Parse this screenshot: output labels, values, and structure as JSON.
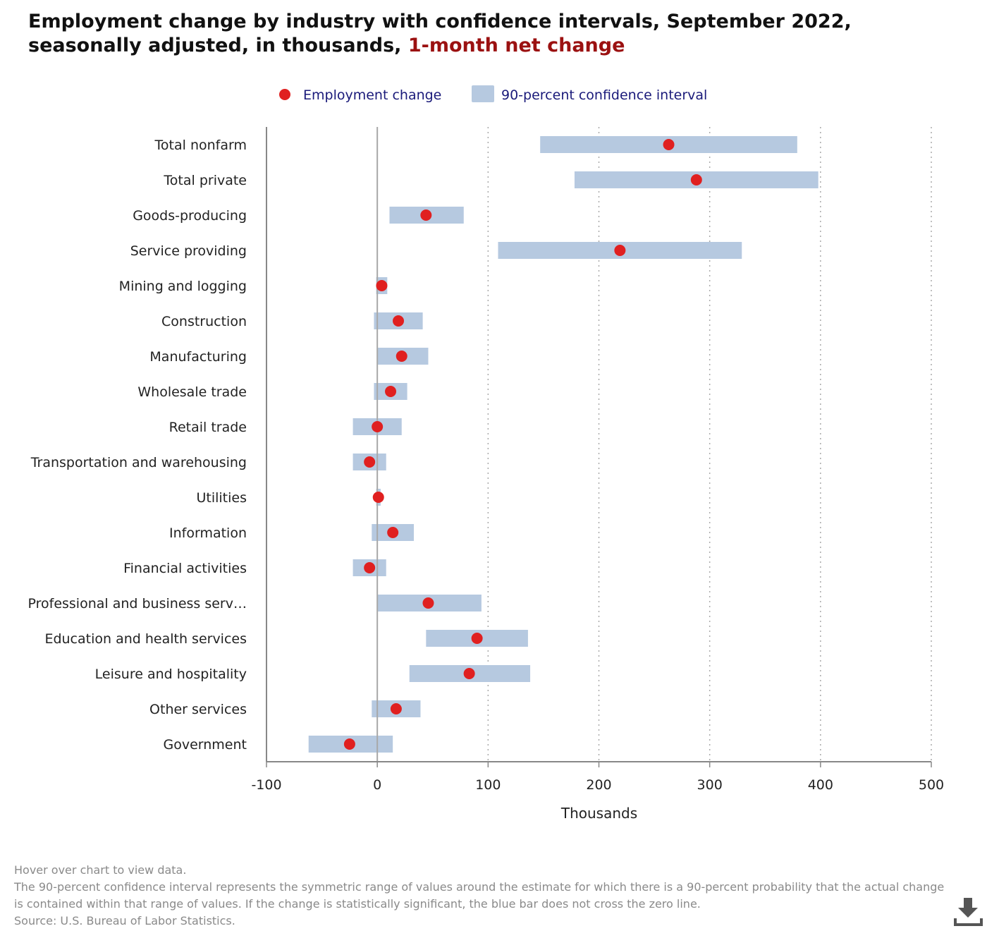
{
  "title": {
    "main": "Employment change by industry with confidence intervals, September 2022, seasonally adjusted, in thousands,",
    "highlight": "1-month net change"
  },
  "colors": {
    "point": "#e02020",
    "interval": "#b6c9e0",
    "legend_text": "#1a1a7a",
    "title_accent": "#9b1111",
    "axis": "#888888",
    "grid": "#aaaaaa"
  },
  "legend": {
    "point_label": "Employment change",
    "interval_label": "90-percent confidence interval"
  },
  "chart_data": {
    "type": "dot-interval",
    "xlabel": "Thousands",
    "xlim": [
      -100,
      500
    ],
    "xticks": [
      -100,
      0,
      100,
      200,
      300,
      400,
      500
    ],
    "grid": "vertical dotted",
    "legend_position": "top",
    "categories": [
      "Total nonfarm",
      "Total private",
      "Goods-producing",
      "Service providing",
      "Mining and logging",
      "Construction",
      "Manufacturing",
      "Wholesale trade",
      "Retail trade",
      "Transportation and warehousing",
      "Utilities",
      "Information",
      "Financial activities",
      "Professional and business serv…",
      "Education and health services",
      "Leisure and hospitality",
      "Other services",
      "Government"
    ],
    "values": [
      263,
      288,
      44,
      219,
      4,
      19,
      22,
      12,
      0,
      -7,
      1,
      14,
      -7,
      46,
      90,
      83,
      17,
      -25
    ],
    "ci_low": [
      147,
      178,
      11,
      109,
      -1,
      -3,
      0,
      -3,
      -22,
      -22,
      -1,
      -5,
      -22,
      0,
      44,
      29,
      -5,
      -62
    ],
    "ci_high": [
      379,
      398,
      78,
      329,
      9,
      41,
      46,
      27,
      22,
      8,
      3,
      33,
      8,
      94,
      136,
      138,
      39,
      14
    ]
  },
  "notes": {
    "hover": "Hover over chart to view data.",
    "definition": "The 90-percent confidence interval represents the symmetric range of values around the estimate for which there is a 90-percent probability that the actual change is contained within that range of values. If the change is statistically significant, the blue bar does not cross the zero line.",
    "source": "Source: U.S. Bureau of Labor Statistics."
  },
  "download_icon": "download-icon"
}
